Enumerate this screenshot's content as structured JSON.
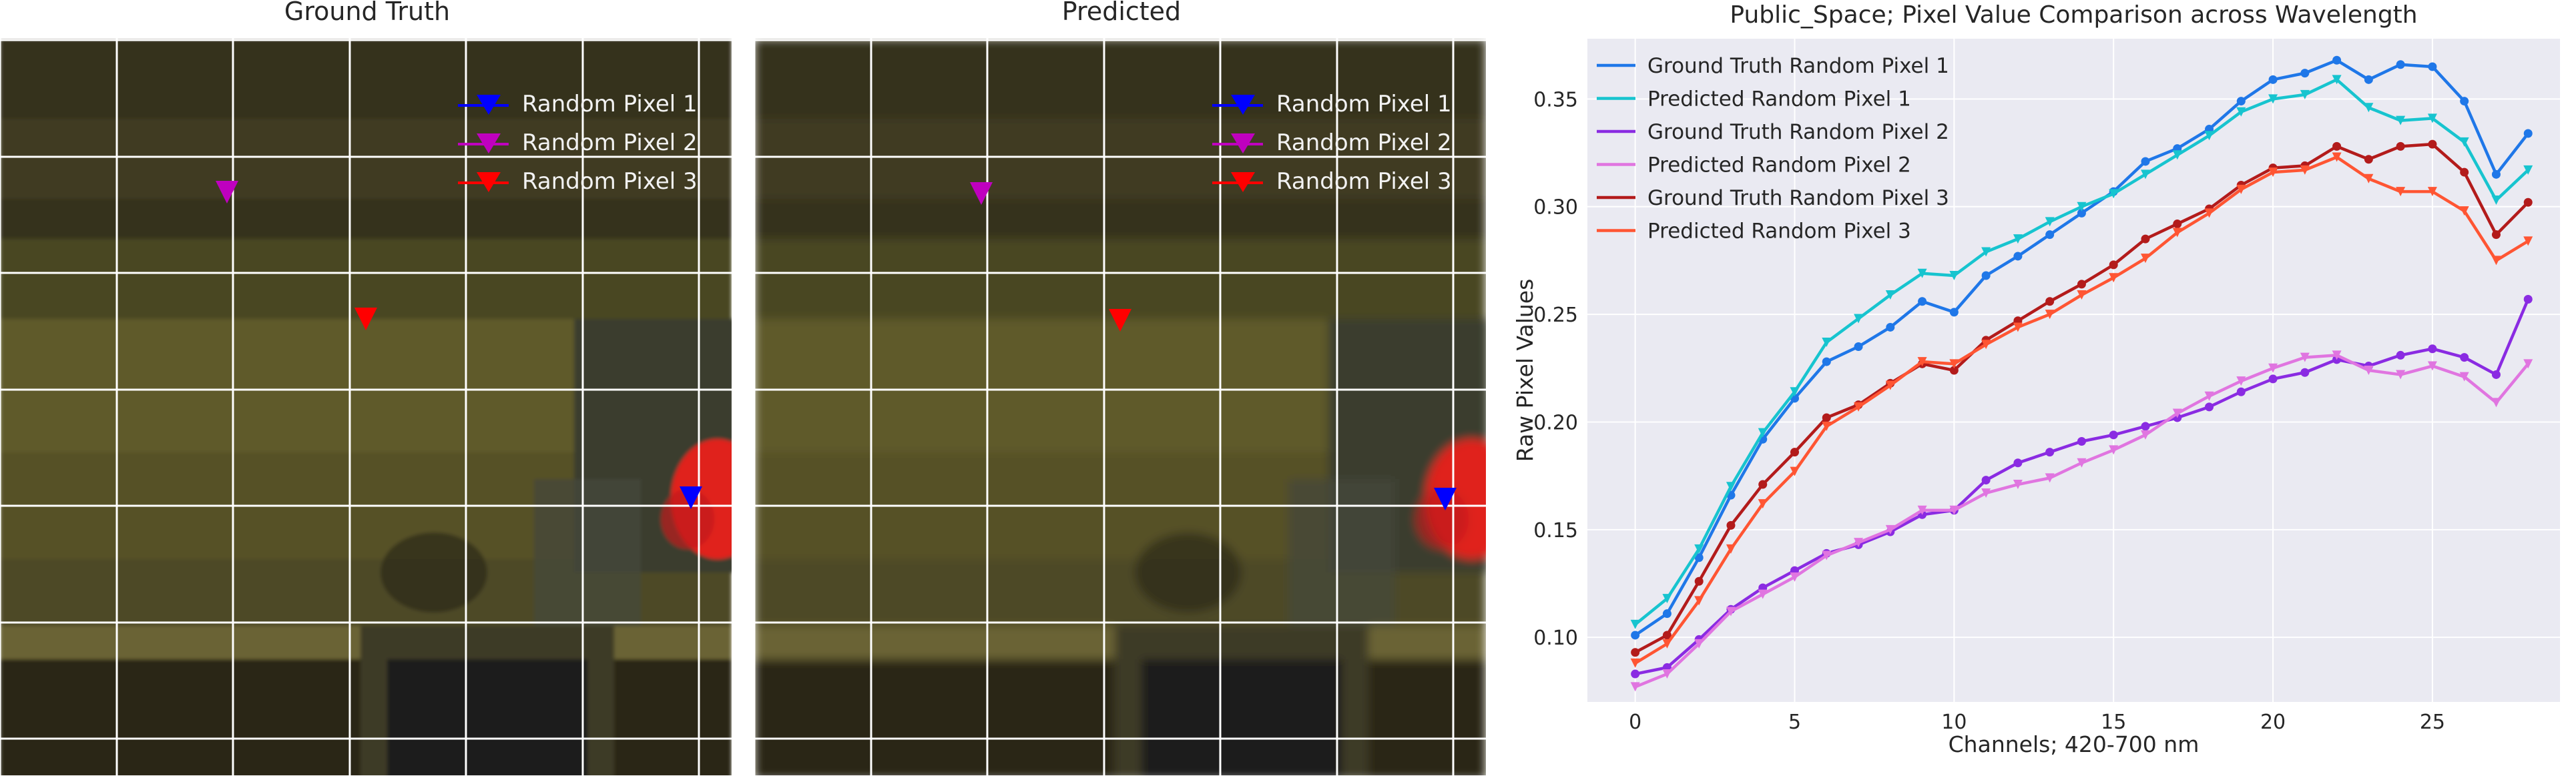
{
  "panels": {
    "ground_truth_title": "Ground Truth",
    "predicted_title": "Predicted",
    "legend": [
      {
        "label": "Random Pixel 1",
        "color": "#0000ff"
      },
      {
        "label": "Random Pixel 2",
        "color": "#bf00bf"
      },
      {
        "label": "Random Pixel 3",
        "color": "#ff0000"
      }
    ]
  },
  "chart_data": {
    "type": "line",
    "title": "Public_Space; Pixel Value Comparison across Wavelength",
    "xlabel": "Channels; 420-700 nm",
    "ylabel": "Raw Pixel Values",
    "xlim": [
      -1.5,
      29.0
    ],
    "ylim": [
      0.07,
      0.378
    ],
    "xticks": [
      0,
      5,
      10,
      15,
      20,
      25
    ],
    "yticks": [
      0.1,
      0.15,
      0.2,
      0.25,
      0.3,
      0.35
    ],
    "ytick_labels": [
      "0.10",
      "0.15",
      "0.20",
      "0.25",
      "0.30",
      "0.35"
    ],
    "grid": true,
    "legend_position": "top-left",
    "x": [
      0,
      1,
      2,
      3,
      4,
      5,
      6,
      7,
      8,
      9,
      10,
      11,
      12,
      13,
      14,
      15,
      16,
      17,
      18,
      19,
      20,
      21,
      22,
      23,
      24,
      25,
      26,
      27,
      28
    ],
    "series": [
      {
        "name": "Ground Truth Random Pixel 1",
        "color": "#1f77e8",
        "marker": "circle",
        "values": [
          0.101,
          0.111,
          0.137,
          0.166,
          0.192,
          0.211,
          0.228,
          0.235,
          0.244,
          0.256,
          0.251,
          0.268,
          0.277,
          0.287,
          0.297,
          0.307,
          0.321,
          0.327,
          0.336,
          0.349,
          0.359,
          0.362,
          0.368,
          0.359,
          0.366,
          0.365,
          0.349,
          0.315,
          0.334
        ]
      },
      {
        "name": "Predicted Random Pixel 1",
        "color": "#17c4cf",
        "marker": "triangle",
        "values": [
          0.106,
          0.118,
          0.141,
          0.17,
          0.195,
          0.214,
          0.237,
          0.248,
          0.259,
          0.269,
          0.268,
          0.279,
          0.285,
          0.293,
          0.3,
          0.306,
          0.315,
          0.324,
          0.333,
          0.344,
          0.35,
          0.352,
          0.359,
          0.346,
          0.34,
          0.341,
          0.33,
          0.303,
          0.317
        ]
      },
      {
        "name": "Ground Truth Random Pixel 2",
        "color": "#8a2be2",
        "marker": "circle",
        "values": [
          0.083,
          0.086,
          0.099,
          0.113,
          0.123,
          0.131,
          0.139,
          0.143,
          0.149,
          0.157,
          0.159,
          0.173,
          0.181,
          0.186,
          0.191,
          0.194,
          0.198,
          0.202,
          0.207,
          0.214,
          0.22,
          0.223,
          0.229,
          0.226,
          0.231,
          0.234,
          0.23,
          0.222,
          0.257
        ]
      },
      {
        "name": "Predicted Random Pixel 2",
        "color": "#e075e0",
        "marker": "triangle",
        "values": [
          0.077,
          0.083,
          0.097,
          0.112,
          0.12,
          0.128,
          0.138,
          0.144,
          0.15,
          0.159,
          0.159,
          0.167,
          0.171,
          0.174,
          0.181,
          0.187,
          0.194,
          0.204,
          0.212,
          0.219,
          0.225,
          0.23,
          0.231,
          0.224,
          0.222,
          0.226,
          0.221,
          0.209,
          0.227
        ]
      },
      {
        "name": "Ground Truth Random Pixel 3",
        "color": "#b31b1b",
        "marker": "circle",
        "values": [
          0.093,
          0.101,
          0.126,
          0.152,
          0.171,
          0.186,
          0.202,
          0.208,
          0.218,
          0.227,
          0.224,
          0.238,
          0.247,
          0.256,
          0.264,
          0.273,
          0.285,
          0.292,
          0.299,
          0.31,
          0.318,
          0.319,
          0.328,
          0.322,
          0.328,
          0.329,
          0.316,
          0.287,
          0.302
        ]
      },
      {
        "name": "Predicted Random Pixel 3",
        "color": "#ff5533",
        "marker": "triangle",
        "values": [
          0.088,
          0.097,
          0.117,
          0.141,
          0.162,
          0.177,
          0.198,
          0.207,
          0.217,
          0.228,
          0.227,
          0.236,
          0.244,
          0.25,
          0.259,
          0.267,
          0.276,
          0.288,
          0.297,
          0.308,
          0.316,
          0.317,
          0.323,
          0.313,
          0.307,
          0.307,
          0.298,
          0.275,
          0.284
        ]
      }
    ]
  }
}
